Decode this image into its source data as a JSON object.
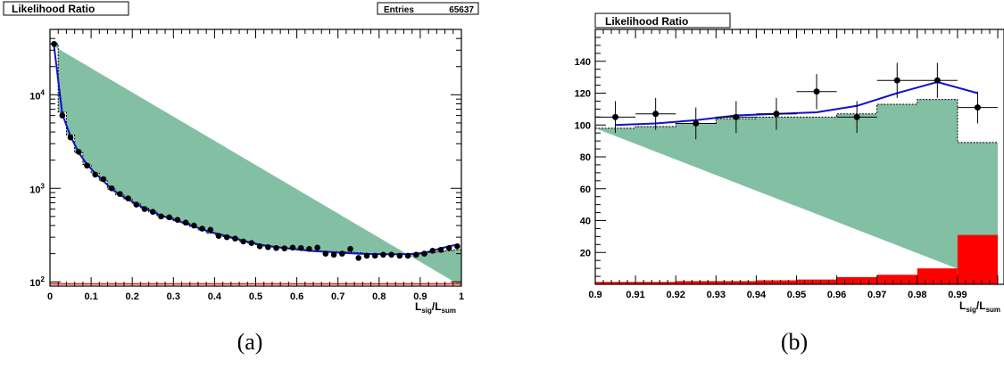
{
  "figure": {
    "panel_a": {
      "title_box": "Likelihood Ratio",
      "stats_label": "Entries",
      "stats_value": "65637",
      "caption": "(a)",
      "xlabel_main": "L",
      "xlabel_sub1": "sig",
      "xlabel_sep": "/L",
      "xlabel_sub2": "sum"
    },
    "panel_b": {
      "title_box": "Likelihood Ratio",
      "caption": "(b)",
      "xlabel_main": "L",
      "xlabel_sub1": "sig",
      "xlabel_sep": "/L",
      "xlabel_sub2": "sum"
    }
  },
  "colors": {
    "fill_green": "#83c0a3",
    "signal_red": "#ff0000",
    "fit_blue": "#1010d0",
    "data_black": "#000000"
  },
  "chart_data": [
    {
      "type": "histogram",
      "panel": "a",
      "yscale": "log",
      "xlim": [
        0,
        1
      ],
      "ylim": [
        90,
        50000
      ],
      "xticks": [
        "0",
        "0.1",
        "0.2",
        "0.3",
        "0.4",
        "0.5",
        "0.6",
        "0.7",
        "0.8",
        "0.9",
        "1"
      ],
      "yticks": [
        {
          "value": 100,
          "label": "10",
          "exp": "2"
        },
        {
          "value": 1000,
          "label": "10",
          "exp": "3"
        },
        {
          "value": 10000,
          "label": "10",
          "exp": "4"
        }
      ],
      "bin_width": 0.02,
      "bin_edges_start": 0,
      "background_hist": [
        35000,
        6500,
        3700,
        2400,
        1800,
        1450,
        1200,
        980,
        850,
        760,
        680,
        610,
        560,
        510,
        480,
        450,
        420,
        390,
        360,
        330,
        320,
        305,
        290,
        270,
        260,
        250,
        240,
        235,
        230,
        225,
        220,
        215,
        212,
        210,
        210,
        208,
        207,
        205,
        200,
        200,
        198,
        198,
        197,
        197,
        198,
        200,
        205,
        210,
        215,
        220
      ],
      "fit_curve": {
        "x": [
          0.01,
          0.03,
          0.05,
          0.07,
          0.09,
          0.11,
          0.13,
          0.15,
          0.17,
          0.19,
          0.21,
          0.23,
          0.25,
          0.27,
          0.29,
          0.31,
          0.33,
          0.35,
          0.37,
          0.39,
          0.41,
          0.43,
          0.45,
          0.47,
          0.49,
          0.51,
          0.53,
          0.55,
          0.57,
          0.59,
          0.61,
          0.63,
          0.65,
          0.67,
          0.69,
          0.71,
          0.73,
          0.75,
          0.77,
          0.79,
          0.81,
          0.83,
          0.85,
          0.87,
          0.89,
          0.91,
          0.93,
          0.95,
          0.97,
          0.99
        ],
        "y": [
          33000,
          6200,
          3600,
          2400,
          1800,
          1450,
          1200,
          980,
          850,
          760,
          680,
          610,
          560,
          510,
          480,
          450,
          420,
          390,
          365,
          340,
          325,
          308,
          292,
          275,
          262,
          250,
          242,
          236,
          230,
          225,
          220,
          215,
          212,
          210,
          207,
          204,
          202,
          200,
          199,
          198,
          197,
          197,
          197,
          198,
          200,
          205,
          215,
          228,
          240,
          250
        ]
      },
      "data_points": {
        "x": [
          0.01,
          0.03,
          0.05,
          0.07,
          0.09,
          0.11,
          0.13,
          0.15,
          0.17,
          0.19,
          0.21,
          0.23,
          0.25,
          0.27,
          0.29,
          0.31,
          0.33,
          0.35,
          0.37,
          0.39,
          0.41,
          0.43,
          0.45,
          0.47,
          0.49,
          0.51,
          0.53,
          0.55,
          0.57,
          0.59,
          0.61,
          0.63,
          0.65,
          0.67,
          0.69,
          0.71,
          0.73,
          0.75,
          0.77,
          0.79,
          0.81,
          0.83,
          0.85,
          0.87,
          0.89,
          0.91,
          0.93,
          0.95,
          0.97,
          0.99
        ],
        "y": [
          35000,
          6000,
          3500,
          2450,
          1750,
          1400,
          1250,
          1000,
          870,
          780,
          670,
          600,
          560,
          500,
          490,
          460,
          430,
          400,
          370,
          360,
          310,
          300,
          290,
          270,
          260,
          240,
          235,
          230,
          228,
          232,
          230,
          225,
          232,
          200,
          195,
          200,
          225,
          180,
          190,
          190,
          195,
          195,
          190,
          190,
          195,
          200,
          215,
          220,
          230,
          240
        ]
      },
      "signal_hist_level": 95
    },
    {
      "type": "histogram",
      "panel": "b",
      "yscale": "linear",
      "xlim": [
        0.9,
        1.0
      ],
      "ylim": [
        0,
        160
      ],
      "xticks": [
        "0.9",
        "0.91",
        "0.92",
        "0.93",
        "0.94",
        "0.95",
        "0.96",
        "0.97",
        "0.98",
        "0.99"
      ],
      "yticks": [
        "20",
        "40",
        "60",
        "80",
        "100",
        "120",
        "140"
      ],
      "bin_width": 0.01,
      "bin_edges_start": 0.9,
      "background_hist": [
        98,
        99,
        101,
        104,
        105,
        105,
        107,
        113,
        116,
        89
      ],
      "signal_hist": [
        1.5,
        1.5,
        2,
        2,
        2.5,
        3,
        4.5,
        6,
        10,
        31
      ],
      "fit_curve": {
        "x": [
          0.905,
          0.915,
          0.925,
          0.935,
          0.945,
          0.955,
          0.965,
          0.975,
          0.985,
          0.995
        ],
        "y": [
          100,
          101,
          103,
          106,
          107,
          108,
          112,
          120,
          127,
          120
        ]
      },
      "data_points": {
        "x": [
          0.905,
          0.915,
          0.925,
          0.935,
          0.945,
          0.955,
          0.965,
          0.975,
          0.985,
          0.995
        ],
        "y": [
          105,
          107,
          101,
          105,
          107,
          121,
          105,
          128,
          128,
          111
        ],
        "err": [
          10,
          10,
          10,
          10,
          10,
          11,
          10,
          11,
          11,
          10
        ]
      }
    }
  ]
}
